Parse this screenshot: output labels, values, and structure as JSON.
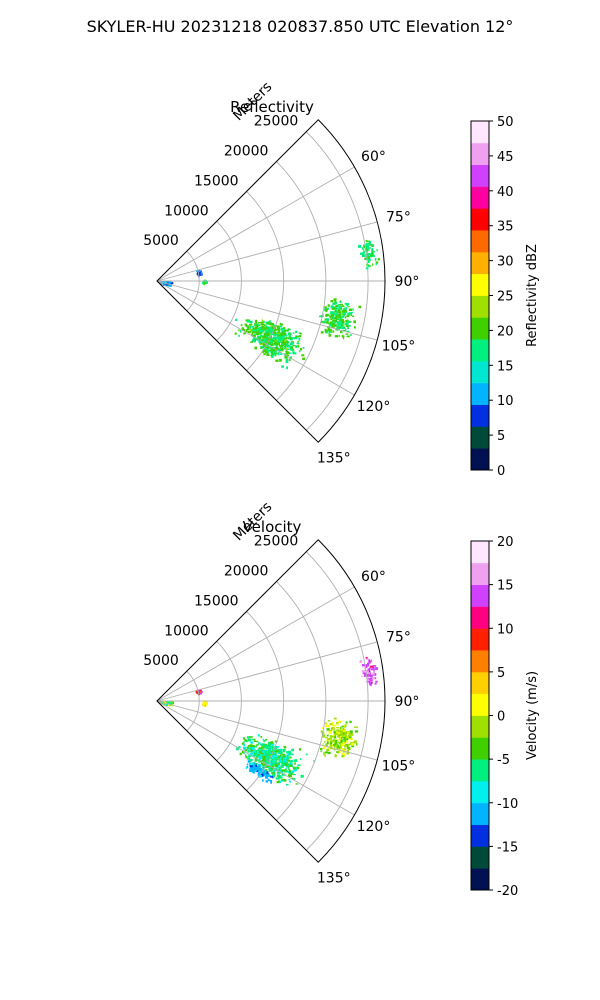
{
  "suptitle": "SKYLER-HU  20231218  020837.850 UTC Elevation 12°",
  "chart_data": [
    {
      "type": "heatmap",
      "subtype": "polar-sector",
      "title": "Reflectivity",
      "range_axis_label": "Meters",
      "range_ticks": [
        5000,
        10000,
        15000,
        20000,
        25000
      ],
      "range_tick_labels": [
        "5000",
        "10000",
        "15000",
        "20000",
        "25000"
      ],
      "rmax": 27000,
      "theta_range_deg": [
        45,
        135
      ],
      "theta_ticks": [
        60,
        75,
        90,
        105,
        120,
        135
      ],
      "theta_tick_labels": [
        "60°",
        "75°",
        "90°",
        "105°",
        "120°",
        "135°"
      ],
      "grid": true,
      "colorbar": {
        "label": "Reflectivity dBZ",
        "min": 0,
        "max": 50,
        "ticks": [
          0,
          5,
          10,
          15,
          20,
          25,
          30,
          35,
          40,
          45,
          50
        ],
        "tick_labels": [
          "0",
          "5",
          "10",
          "15",
          "20",
          "25",
          "30",
          "35",
          "40",
          "45",
          "50"
        ],
        "colormap": [
          "#001050",
          "#004a3a",
          "#0030e0",
          "#00b4ff",
          "#00e6d0",
          "#00f080",
          "#40d000",
          "#a0e000",
          "#ffff00",
          "#ffb000",
          "#ff6a00",
          "#ff0000",
          "#ff00a0",
          "#d040ff",
          "#f0a0f0",
          "#ffe8ff"
        ]
      },
      "echo_regions": [
        {
          "name": "near-origin clutter",
          "az": [
            100,
            108
          ],
          "r": [
            0,
            1800
          ],
          "value": 12,
          "spread": 4
        },
        {
          "name": "near-origin cluster",
          "az": [
            86,
            96
          ],
          "r": [
            200,
            1800
          ],
          "value": 11,
          "spread": 3
        },
        {
          "name": "arc at 5000 m",
          "az": [
            74,
            82
          ],
          "r": [
            4700,
            5300
          ],
          "value": 9,
          "spread": 2
        },
        {
          "name": "arc at 5000 m (lower)",
          "az": [
            88,
            92
          ],
          "r": [
            5300,
            5800
          ],
          "value": 18,
          "spread": 2
        },
        {
          "name": "main precipitation band",
          "az": [
            108,
            125
          ],
          "r": [
            10000,
            20000
          ],
          "value": 19,
          "spread": 3
        },
        {
          "name": "scattered echoes",
          "az": [
            95,
            108
          ],
          "r": [
            19000,
            24500
          ],
          "value": 19,
          "spread": 2
        },
        {
          "name": "distant echoes",
          "az": [
            78,
            87
          ],
          "r": [
            24000,
            26500
          ],
          "value": 18,
          "spread": 2
        }
      ]
    },
    {
      "type": "heatmap",
      "subtype": "polar-sector",
      "title": "Velocity",
      "range_axis_label": "Meters",
      "range_ticks": [
        5000,
        10000,
        15000,
        20000,
        25000
      ],
      "range_tick_labels": [
        "5000",
        "10000",
        "15000",
        "20000",
        "25000"
      ],
      "rmax": 27000,
      "theta_range_deg": [
        45,
        135
      ],
      "theta_ticks": [
        60,
        75,
        90,
        105,
        120,
        135
      ],
      "theta_tick_labels": [
        "60°",
        "75°",
        "90°",
        "105°",
        "120°",
        "135°"
      ],
      "grid": true,
      "colorbar": {
        "label": "Velocity (m/s)",
        "min": -20,
        "max": 20,
        "ticks": [
          -20,
          -15,
          -10,
          -5,
          0,
          5,
          10,
          15,
          20
        ],
        "tick_labels": [
          "-20",
          "-15",
          "-10",
          "-5",
          "0",
          "5",
          "10",
          "15",
          "20"
        ],
        "colormap": [
          "#001050",
          "#004a3a",
          "#0030e0",
          "#00b4ff",
          "#00f0f0",
          "#00f080",
          "#40d000",
          "#a0e000",
          "#ffff00",
          "#ffd000",
          "#ff8000",
          "#ff2000",
          "#ff0080",
          "#d040ff",
          "#f0a0f0",
          "#ffe8ff"
        ]
      },
      "echo_regions": [
        {
          "name": "near-origin clutter",
          "az": [
            86,
            108
          ],
          "r": [
            0,
            1800
          ],
          "value": -3,
          "spread": 6
        },
        {
          "name": "arc at 5000 m",
          "az": [
            74,
            80
          ],
          "r": [
            4700,
            5300
          ],
          "value": 10,
          "spread": 3
        },
        {
          "name": "arc at 5000 m (lower)",
          "az": [
            88,
            96
          ],
          "r": [
            5300,
            5800
          ],
          "value": 2,
          "spread": 1
        },
        {
          "name": "main precipitation band",
          "az": [
            108,
            125
          ],
          "r": [
            10000,
            20000
          ],
          "value": -6,
          "spread": 3
        },
        {
          "name": "outer band edge",
          "az": [
            122,
            127
          ],
          "r": [
            12000,
            17000
          ],
          "value": -11,
          "spread": 2
        },
        {
          "name": "scattered echoes",
          "az": [
            95,
            108
          ],
          "r": [
            19000,
            24500
          ],
          "value": -1,
          "spread": 3
        },
        {
          "name": "distant echoes",
          "az": [
            78,
            87
          ],
          "r": [
            24000,
            26500
          ],
          "value": 14,
          "spread": 2
        }
      ]
    }
  ]
}
